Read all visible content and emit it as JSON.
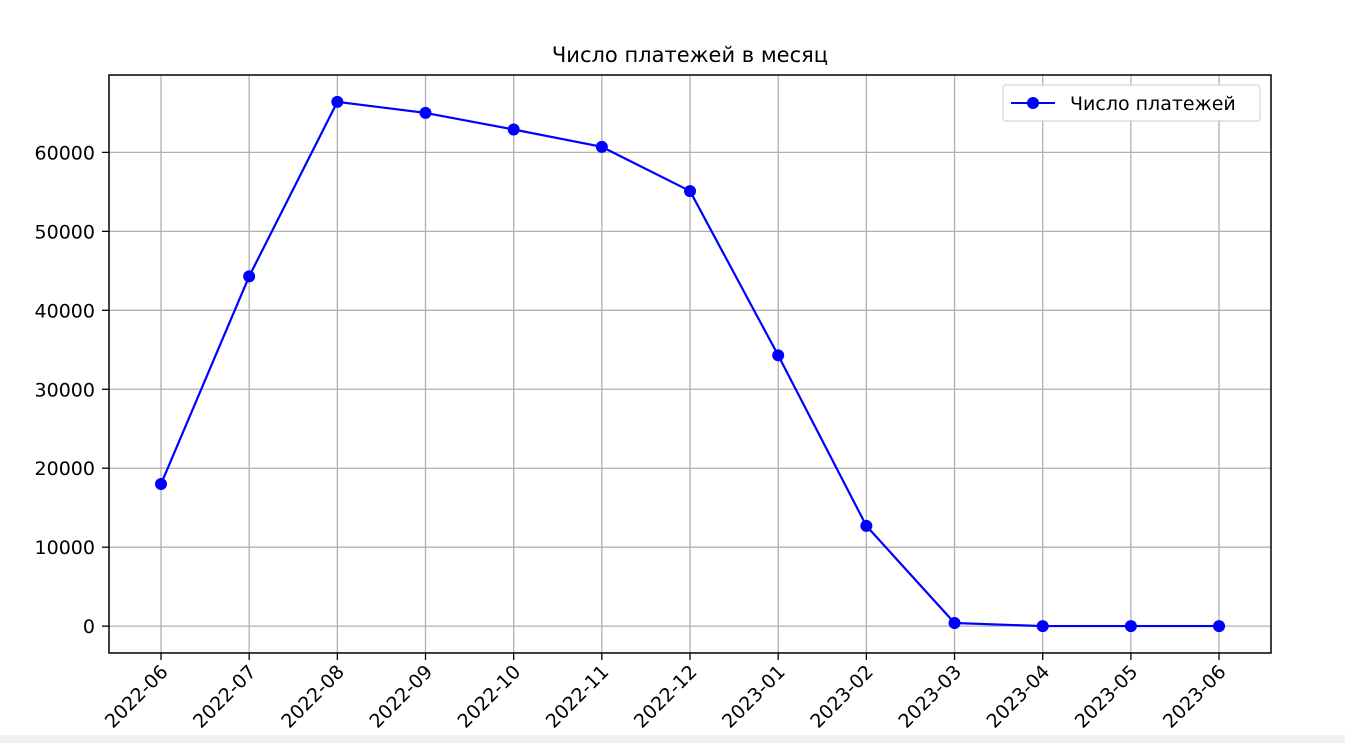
{
  "chart_data": {
    "type": "line",
    "title": "Число платежей в месяц",
    "xlabel": "",
    "ylabel": "",
    "categories": [
      "2022-06",
      "2022-07",
      "2022-08",
      "2022-09",
      "2022-10",
      "2022-11",
      "2022-12",
      "2023-01",
      "2023-02",
      "2023-03",
      "2023-04",
      "2023-05",
      "2023-06"
    ],
    "series": [
      {
        "name": "Число платежей",
        "values": [
          18000,
          44300,
          66400,
          65000,
          62900,
          60700,
          55100,
          34300,
          12700,
          400,
          10,
          10,
          10
        ],
        "color": "#0000ff",
        "marker": "circle"
      }
    ],
    "yticks": [
      "0",
      "10000",
      "20000",
      "30000",
      "40000",
      "50000",
      "60000"
    ],
    "ylim": [
      -3400,
      69800
    ],
    "grid": true,
    "legend": "top-right",
    "legend_label": "Число платежей"
  }
}
